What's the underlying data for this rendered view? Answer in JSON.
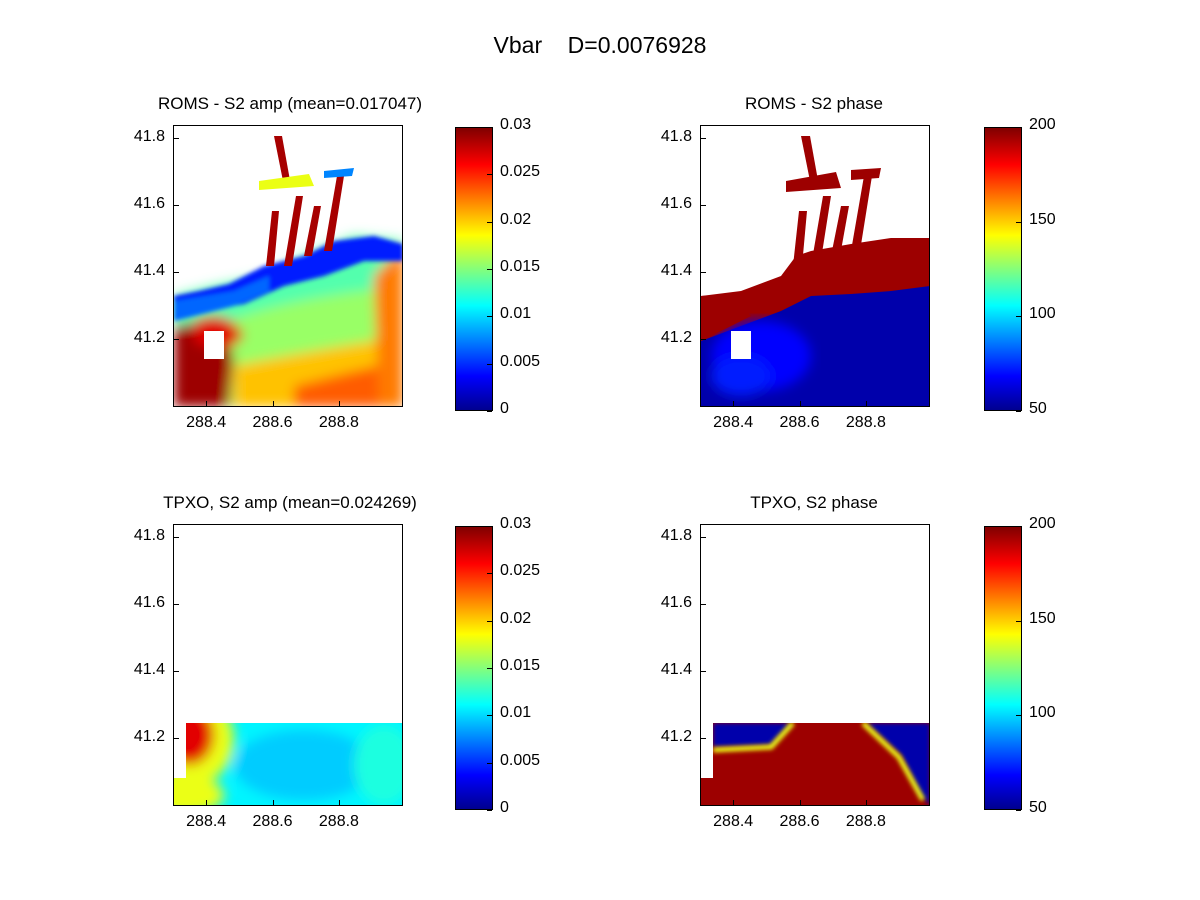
{
  "figure_title": "Vbar    D=0.0076928",
  "colormap": [
    "#00008f",
    "#0000ff",
    "#00ffff",
    "#ffff00",
    "#ff0000",
    "#800000"
  ],
  "chart_data": [
    {
      "type": "heatmap",
      "title": "ROMS - S2 amp (mean=0.017047)",
      "xlabel": "",
      "ylabel": "",
      "xlim": [
        288.3,
        288.99
      ],
      "ylim": [
        41.0,
        41.84
      ],
      "xticks": [
        "288.4",
        "288.6",
        "288.8"
      ],
      "yticks": [
        "41.2",
        "41.4",
        "41.6",
        "41.8"
      ],
      "colorbar": {
        "min": 0,
        "max": 0.03,
        "ticks": [
          "0",
          "0.005",
          "0.01",
          "0.015",
          "0.02",
          "0.025",
          "0.03"
        ]
      },
      "field": "ROMS amplitude: estuary channels high (dark red), coastal band low (blue), open shelf mid (cyan-yellow), southwest corner high"
    },
    {
      "type": "heatmap",
      "title": "ROMS - S2 phase",
      "xlabel": "",
      "ylabel": "",
      "xlim": [
        288.3,
        288.99
      ],
      "ylim": [
        41.0,
        41.84
      ],
      "xticks": [
        "288.4",
        "288.6",
        "288.8"
      ],
      "yticks": [
        "41.2",
        "41.4",
        "41.6",
        "41.8"
      ],
      "colorbar": {
        "min": 50,
        "max": 200,
        "ticks": [
          "50",
          "100",
          "150",
          "200"
        ]
      },
      "field": "ROMS phase: land-adjacent bay and channels ~200 (dark red), open water ~50 (dark blue)"
    },
    {
      "type": "heatmap",
      "title": "TPXO, S2 amp (mean=0.024269)",
      "xlabel": "",
      "ylabel": "",
      "xlim": [
        288.3,
        288.99
      ],
      "ylim": [
        41.0,
        41.84
      ],
      "xticks": [
        "288.4",
        "288.6",
        "288.8"
      ],
      "yticks": [
        "41.2",
        "41.4",
        "41.6",
        "41.8"
      ],
      "colorbar": {
        "min": 0,
        "max": 0.03,
        "ticks": [
          "0",
          "0.005",
          "0.01",
          "0.015",
          "0.02",
          "0.025",
          "0.03"
        ]
      },
      "field": "TPXO amplitude: data only below ~41.25; west edge high (dark red), mostly ~0.01 cyan"
    },
    {
      "type": "heatmap",
      "title": "TPXO, S2 phase",
      "xlabel": "",
      "ylabel": "",
      "xlim": [
        288.3,
        288.99
      ],
      "ylim": [
        41.0,
        41.84
      ],
      "xticks": [
        "288.4",
        "288.6",
        "288.8"
      ],
      "yticks": [
        "41.2",
        "41.4",
        "41.6",
        "41.8"
      ],
      "colorbar": {
        "min": 50,
        "max": 200,
        "ticks": [
          "50",
          "100",
          "150",
          "200"
        ]
      },
      "field": "TPXO phase: data only below ~41.25; mostly ~200 (dark red) with ~50 (blue) pockets at top-left and right"
    }
  ]
}
